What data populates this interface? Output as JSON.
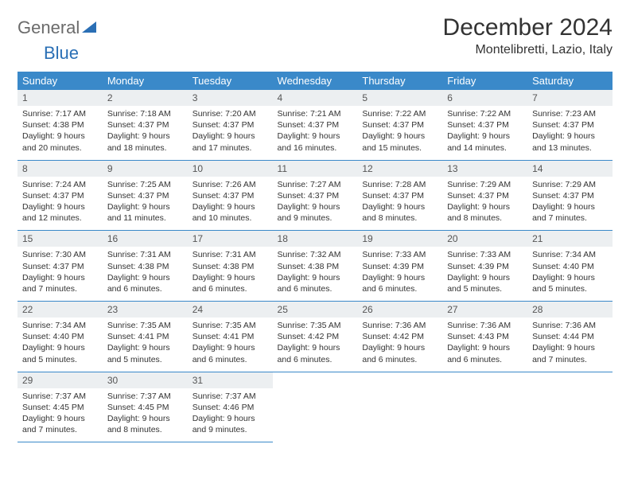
{
  "logo": {
    "part1": "General",
    "part2": "Blue"
  },
  "title": "December 2024",
  "location": "Montelibretti, Lazio, Italy",
  "colors": {
    "header_bg": "#3a89c9",
    "header_fg": "#ffffff",
    "daynum_bg": "#eceff1",
    "rule": "#3a89c9",
    "brand_blue": "#2a6fb5",
    "brand_gray": "#6b6b6b",
    "text": "#333333",
    "page_bg": "#ffffff"
  },
  "fonts": {
    "title_pt": 30,
    "location_pt": 16,
    "th_pt": 13,
    "daynum_pt": 12,
    "body_pt": 10.5
  },
  "weekdays": [
    "Sunday",
    "Monday",
    "Tuesday",
    "Wednesday",
    "Thursday",
    "Friday",
    "Saturday"
  ],
  "weeks": [
    [
      {
        "n": "1",
        "sr": "7:17 AM",
        "ss": "4:38 PM",
        "d": "9 hours and 20 minutes."
      },
      {
        "n": "2",
        "sr": "7:18 AM",
        "ss": "4:37 PM",
        "d": "9 hours and 18 minutes."
      },
      {
        "n": "3",
        "sr": "7:20 AM",
        "ss": "4:37 PM",
        "d": "9 hours and 17 minutes."
      },
      {
        "n": "4",
        "sr": "7:21 AM",
        "ss": "4:37 PM",
        "d": "9 hours and 16 minutes."
      },
      {
        "n": "5",
        "sr": "7:22 AM",
        "ss": "4:37 PM",
        "d": "9 hours and 15 minutes."
      },
      {
        "n": "6",
        "sr": "7:22 AM",
        "ss": "4:37 PM",
        "d": "9 hours and 14 minutes."
      },
      {
        "n": "7",
        "sr": "7:23 AM",
        "ss": "4:37 PM",
        "d": "9 hours and 13 minutes."
      }
    ],
    [
      {
        "n": "8",
        "sr": "7:24 AM",
        "ss": "4:37 PM",
        "d": "9 hours and 12 minutes."
      },
      {
        "n": "9",
        "sr": "7:25 AM",
        "ss": "4:37 PM",
        "d": "9 hours and 11 minutes."
      },
      {
        "n": "10",
        "sr": "7:26 AM",
        "ss": "4:37 PM",
        "d": "9 hours and 10 minutes."
      },
      {
        "n": "11",
        "sr": "7:27 AM",
        "ss": "4:37 PM",
        "d": "9 hours and 9 minutes."
      },
      {
        "n": "12",
        "sr": "7:28 AM",
        "ss": "4:37 PM",
        "d": "9 hours and 8 minutes."
      },
      {
        "n": "13",
        "sr": "7:29 AM",
        "ss": "4:37 PM",
        "d": "9 hours and 8 minutes."
      },
      {
        "n": "14",
        "sr": "7:29 AM",
        "ss": "4:37 PM",
        "d": "9 hours and 7 minutes."
      }
    ],
    [
      {
        "n": "15",
        "sr": "7:30 AM",
        "ss": "4:37 PM",
        "d": "9 hours and 7 minutes."
      },
      {
        "n": "16",
        "sr": "7:31 AM",
        "ss": "4:38 PM",
        "d": "9 hours and 6 minutes."
      },
      {
        "n": "17",
        "sr": "7:31 AM",
        "ss": "4:38 PM",
        "d": "9 hours and 6 minutes."
      },
      {
        "n": "18",
        "sr": "7:32 AM",
        "ss": "4:38 PM",
        "d": "9 hours and 6 minutes."
      },
      {
        "n": "19",
        "sr": "7:33 AM",
        "ss": "4:39 PM",
        "d": "9 hours and 6 minutes."
      },
      {
        "n": "20",
        "sr": "7:33 AM",
        "ss": "4:39 PM",
        "d": "9 hours and 5 minutes."
      },
      {
        "n": "21",
        "sr": "7:34 AM",
        "ss": "4:40 PM",
        "d": "9 hours and 5 minutes."
      }
    ],
    [
      {
        "n": "22",
        "sr": "7:34 AM",
        "ss": "4:40 PM",
        "d": "9 hours and 5 minutes."
      },
      {
        "n": "23",
        "sr": "7:35 AM",
        "ss": "4:41 PM",
        "d": "9 hours and 5 minutes."
      },
      {
        "n": "24",
        "sr": "7:35 AM",
        "ss": "4:41 PM",
        "d": "9 hours and 6 minutes."
      },
      {
        "n": "25",
        "sr": "7:35 AM",
        "ss": "4:42 PM",
        "d": "9 hours and 6 minutes."
      },
      {
        "n": "26",
        "sr": "7:36 AM",
        "ss": "4:42 PM",
        "d": "9 hours and 6 minutes."
      },
      {
        "n": "27",
        "sr": "7:36 AM",
        "ss": "4:43 PM",
        "d": "9 hours and 6 minutes."
      },
      {
        "n": "28",
        "sr": "7:36 AM",
        "ss": "4:44 PM",
        "d": "9 hours and 7 minutes."
      }
    ],
    [
      {
        "n": "29",
        "sr": "7:37 AM",
        "ss": "4:45 PM",
        "d": "9 hours and 7 minutes."
      },
      {
        "n": "30",
        "sr": "7:37 AM",
        "ss": "4:45 PM",
        "d": "9 hours and 8 minutes."
      },
      {
        "n": "31",
        "sr": "7:37 AM",
        "ss": "4:46 PM",
        "d": "9 hours and 9 minutes."
      },
      null,
      null,
      null,
      null
    ]
  ],
  "labels": {
    "sunrise": "Sunrise:",
    "sunset": "Sunset:",
    "daylight": "Daylight:"
  }
}
